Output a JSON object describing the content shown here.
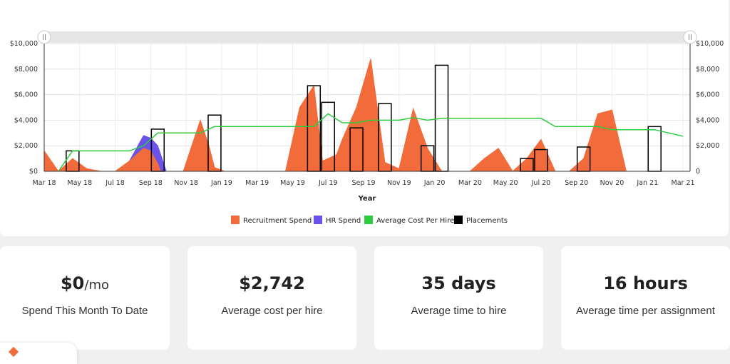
{
  "chart_data": {
    "type": "area",
    "xlabel": "Year",
    "x_ticks": [
      "Mar 18",
      "May 18",
      "Jul 18",
      "Sep 18",
      "Nov 18",
      "Jan 19",
      "Mar 19",
      "May 19",
      "Jul 19",
      "Sep 19",
      "Nov 19",
      "Jan 20",
      "Mar 20",
      "May 20",
      "Jul 20",
      "Sep 20",
      "Nov 20",
      "Jan 21",
      "Mar 21"
    ],
    "y_ticks_left": [
      "$0",
      "$2,000",
      "$4,000",
      "$6,000",
      "$8,000",
      "$10,000"
    ],
    "y_ticks_right": [
      "0",
      "$2,000",
      "$4,000",
      "$6,000",
      "$8,000",
      "$10,000"
    ],
    "ylim": [
      0,
      10000
    ],
    "x_range_months": [
      0,
      37
    ],
    "series": [
      {
        "name": "Recruitment Spend",
        "type": "area",
        "color": "#f26b3a",
        "points": [
          [
            0,
            1600
          ],
          [
            1,
            0
          ],
          [
            2,
            1000
          ],
          [
            3,
            200
          ],
          [
            4,
            0
          ],
          [
            5,
            0
          ],
          [
            6,
            800
          ],
          [
            7,
            1800
          ],
          [
            7.5,
            1600
          ],
          [
            8,
            600
          ],
          [
            8.2,
            0
          ],
          [
            9,
            0
          ],
          [
            9.8,
            0
          ],
          [
            11,
            4000
          ],
          [
            11.6,
            2000
          ],
          [
            12,
            300
          ],
          [
            12.7,
            0
          ],
          [
            14,
            0
          ],
          [
            15,
            0
          ],
          [
            16,
            0
          ],
          [
            17,
            0
          ],
          [
            18,
            5000
          ],
          [
            19,
            6700
          ],
          [
            19.6,
            800
          ],
          [
            20,
            1000
          ],
          [
            20.6,
            1300
          ],
          [
            21,
            2500
          ],
          [
            22,
            5000
          ],
          [
            23,
            8800
          ],
          [
            24,
            700
          ],
          [
            25,
            200
          ],
          [
            26,
            4900
          ],
          [
            27,
            1800
          ],
          [
            28,
            0
          ],
          [
            29,
            0
          ],
          [
            30,
            0
          ],
          [
            31,
            1000
          ],
          [
            32,
            1800
          ],
          [
            33,
            0
          ],
          [
            34,
            1000
          ],
          [
            35,
            2500
          ],
          [
            36,
            0
          ],
          [
            37,
            0
          ],
          [
            38,
            1000
          ],
          [
            39,
            4500
          ],
          [
            40,
            4800
          ],
          [
            41,
            0
          ]
        ]
      },
      {
        "name": "HR Spend",
        "type": "area",
        "color": "#6b52ea",
        "points": [
          [
            6,
            800
          ],
          [
            7,
            2800
          ],
          [
            7.5,
            2600
          ],
          [
            8,
            2000
          ],
          [
            8.6,
            0
          ]
        ]
      },
      {
        "name": "Average Cost Per Hire",
        "type": "line",
        "color": "#2ecc40",
        "points": [
          [
            1,
            0
          ],
          [
            2,
            1600
          ],
          [
            6,
            1600
          ],
          [
            7,
            2000
          ],
          [
            8,
            3000
          ],
          [
            11,
            3000
          ],
          [
            12,
            3500
          ],
          [
            19,
            3500
          ],
          [
            20,
            4500
          ],
          [
            21,
            3800
          ],
          [
            22,
            3800
          ],
          [
            23,
            4000
          ],
          [
            25,
            4000
          ],
          [
            26,
            4200
          ],
          [
            27,
            4000
          ],
          [
            28,
            4150
          ],
          [
            35,
            4150
          ],
          [
            36,
            3500
          ],
          [
            39,
            3500
          ],
          [
            40,
            3250
          ],
          [
            43,
            3250
          ],
          [
            44,
            3000
          ],
          [
            45,
            2742
          ]
        ]
      },
      {
        "name": "Placements",
        "type": "bar",
        "color": "#000000",
        "points": [
          [
            2,
            1600
          ],
          [
            8,
            3300
          ],
          [
            12,
            4400
          ],
          [
            19,
            6700
          ],
          [
            20,
            5400
          ],
          [
            22,
            3400
          ],
          [
            24,
            5300
          ],
          [
            27,
            2000
          ],
          [
            28,
            8300
          ],
          [
            34,
            1000
          ],
          [
            35,
            1700
          ],
          [
            38,
            1900
          ],
          [
            43,
            3500
          ]
        ]
      }
    ],
    "legend_position": "bottom"
  },
  "stats": [
    {
      "value": "$0",
      "unit": "/mo",
      "label": "Spend This Month To Date"
    },
    {
      "value": "$2,742",
      "unit": "",
      "label": "Average cost per hire"
    },
    {
      "value": "35 days",
      "unit": "",
      "label": "Average time to hire"
    },
    {
      "value": "16 hours",
      "unit": "",
      "label": "Average time per assignment"
    }
  ]
}
